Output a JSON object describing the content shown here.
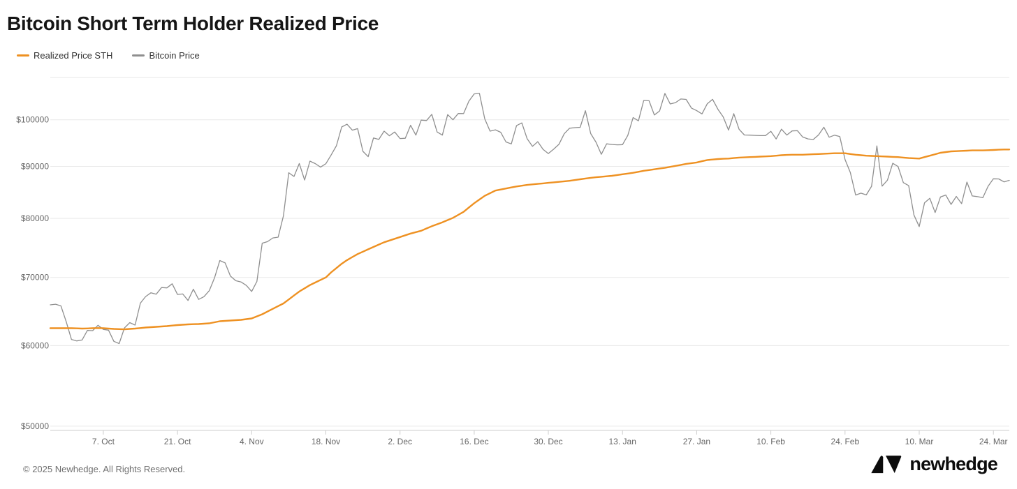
{
  "header": {
    "title": "Bitcoin Short Term Holder Realized Price"
  },
  "legend": {
    "items": [
      {
        "label": "Realized Price STH",
        "color": "#ee9122"
      },
      {
        "label": "Bitcoin Price",
        "color": "#8f8f8f"
      }
    ]
  },
  "footer": {
    "copyright": "© 2025 Newhedge. All Rights Reserved.",
    "brand": "newhedge"
  },
  "colors": {
    "grid": "#e9e9e9",
    "axis_line": "#cccccc",
    "tick_label": "#666666",
    "background": "#ffffff"
  },
  "chart_data": {
    "type": "line",
    "title": "Bitcoin Short Term Holder Realized Price",
    "x_start_date": "2024-09-27",
    "x_end_date": "2025-03-27",
    "x_interval": "daily",
    "grid": "horizontal-only",
    "legend_position": "top-left",
    "y_axis": {
      "scale": "log",
      "tick_labels": [
        "$50000",
        "$60000",
        "$70000",
        "$80000",
        "$90000",
        "$100000"
      ],
      "tick_values": [
        50000,
        60000,
        70000,
        80000,
        90000,
        100000
      ],
      "gridline_values": [
        50000,
        60000,
        70000,
        80000,
        90000,
        100000,
        110000
      ],
      "min": 50000,
      "max": 110000
    },
    "x_axis": {
      "tick_labels": [
        "7. Oct",
        "21. Oct",
        "4. Nov",
        "18. Nov",
        "2. Dec",
        "16. Dec",
        "30. Dec",
        "13. Jan",
        "27. Jan",
        "10. Feb",
        "24. Feb",
        "10. Mar",
        "24. Mar"
      ],
      "tick_day_indices": [
        10,
        24,
        38,
        52,
        66,
        80,
        94,
        108,
        122,
        136,
        150,
        164,
        178
      ]
    },
    "series": [
      {
        "name": "Bitcoin Price",
        "color": "#8f8f8f",
        "values": [
          65790,
          65887,
          65635,
          63329,
          60837,
          60632,
          60759,
          62086,
          62058,
          62818,
          62236,
          62131,
          60582,
          60274,
          62445,
          63193,
          62851,
          66046,
          67041,
          67612,
          67399,
          68418,
          68362,
          69001,
          67357,
          67426,
          66446,
          68161,
          66601,
          67014,
          67929,
          69958,
          72720,
          72339,
          70215,
          69482,
          69289,
          68741,
          67811,
          69372,
          75639,
          75904,
          76545,
          76677,
          80474,
          88701,
          87955,
          90584,
          87250,
          91066,
          90558,
          89845,
          90542,
          92325,
          94286,
          98380,
          98997,
          97672,
          98013,
          93102,
          91985,
          95962,
          95652,
          97461,
          96449,
          97276,
          95840,
          95897,
          98768,
          96594,
          99920,
          99831,
          101236,
          97277,
          96593,
          101173,
          100004,
          101424,
          101420,
          104298,
          106029,
          106140,
          100204,
          97461,
          97756,
          97216,
          95104,
          94686,
          98676,
          99299,
          95795,
          94164,
          95163,
          93530,
          92643,
          93557,
          94591,
          96886,
          98107,
          98236,
          98314,
          102078,
          96922,
          95043,
          92484,
          94701,
          94566,
          94488,
          94516,
          96534,
          100504,
          99756,
          104462,
          104408,
          101089,
          102016,
          106146,
          103653,
          103960,
          104819,
          104714,
          102682,
          102082,
          101336,
          103703,
          104735,
          102405,
          100655,
          97688,
          101405,
          97871,
          96615,
          96593,
          96529,
          96482,
          96500,
          97437,
          95747,
          97885,
          96608,
          97508,
          97570,
          96175,
          95773,
          95639,
          96635,
          98333,
          96125,
          96577,
          96273,
          91418,
          88736,
          84347,
          84709,
          84373,
          86031,
          94248,
          86065,
          87222,
          90623,
          89961,
          86742,
          86154,
          80601,
          78532,
          82862,
          83722,
          81066,
          83969,
          84343,
          82579,
          84075,
          82718,
          86854,
          84167,
          84043,
          83832,
          86054,
          87498,
          87471,
          86898,
          87200
        ]
      },
      {
        "name": "Realized Price STH",
        "color": "#ee9122",
        "values": [
          62400,
          62400,
          62400,
          62400,
          62400,
          62380,
          62350,
          62370,
          62400,
          62420,
          62400,
          62350,
          62300,
          62270,
          62250,
          62300,
          62350,
          62420,
          62500,
          62550,
          62600,
          62650,
          62700,
          62780,
          62850,
          62900,
          62950,
          62980,
          63000,
          63050,
          63100,
          63250,
          63400,
          63450,
          63500,
          63550,
          63600,
          63700,
          63800,
          64100,
          64400,
          64800,
          65200,
          65600,
          66000,
          66600,
          67200,
          67800,
          68300,
          68800,
          69200,
          69600,
          70000,
          70800,
          71500,
          72200,
          72800,
          73300,
          73800,
          74200,
          74600,
          75000,
          75400,
          75800,
          76100,
          76400,
          76700,
          77000,
          77300,
          77550,
          77800,
          78200,
          78600,
          78950,
          79300,
          79700,
          80100,
          80650,
          81200,
          82000,
          82800,
          83500,
          84200,
          84700,
          85200,
          85400,
          85600,
          85800,
          86000,
          86150,
          86300,
          86400,
          86500,
          86600,
          86700,
          86800,
          86900,
          87000,
          87100,
          87250,
          87400,
          87550,
          87700,
          87800,
          87900,
          88000,
          88100,
          88250,
          88400,
          88550,
          88700,
          88900,
          89100,
          89250,
          89400,
          89550,
          89700,
          89900,
          90100,
          90300,
          90500,
          90650,
          90800,
          91050,
          91300,
          91400,
          91500,
          91550,
          91600,
          91700,
          91800,
          91850,
          91900,
          91950,
          92000,
          92050,
          92100,
          92200,
          92300,
          92350,
          92400,
          92400,
          92400,
          92450,
          92500,
          92550,
          92600,
          92650,
          92700,
          92700,
          92700,
          92550,
          92400,
          92300,
          92200,
          92150,
          92100,
          92050,
          92000,
          91950,
          91900,
          91800,
          91700,
          91650,
          91600,
          91900,
          92200,
          92500,
          92800,
          92950,
          93100,
          93150,
          93200,
          93250,
          93300,
          93300,
          93300,
          93350,
          93400,
          93450,
          93500,
          93500
        ]
      }
    ]
  }
}
